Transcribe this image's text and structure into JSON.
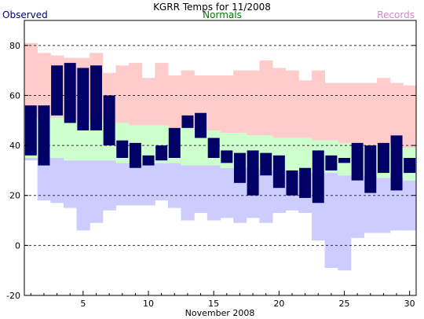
{
  "chart_data": {
    "type": "bar",
    "title": "KGRR Temps for 11/2008",
    "xlabel": "November 2008",
    "ylabel": "",
    "ylim": [
      -20,
      90
    ],
    "xlim": [
      0.5,
      30.5
    ],
    "yticks": [
      -20,
      0,
      20,
      40,
      60,
      80
    ],
    "xticks": [
      5,
      10,
      15,
      20,
      25,
      30
    ],
    "grid": "horizontal dashed",
    "legend": [
      "Observed",
      "Normals",
      "Records"
    ],
    "colors": {
      "observed": "#000066",
      "normals": "#ccffcc",
      "record_high": "#ffcccc",
      "record_low": "#ccccff",
      "legend_observed": "#000066",
      "legend_normals": "#007700",
      "legend_records": "#cc88cc"
    },
    "days": [
      1,
      2,
      3,
      4,
      5,
      6,
      7,
      8,
      9,
      10,
      11,
      12,
      13,
      14,
      15,
      16,
      17,
      18,
      19,
      20,
      21,
      22,
      23,
      24,
      25,
      26,
      27,
      28,
      29,
      30
    ],
    "observed_high": [
      56,
      56,
      72,
      73,
      71,
      72,
      60,
      42,
      41,
      36,
      40,
      47,
      52,
      53,
      43,
      38,
      37,
      38,
      37,
      36,
      30,
      31,
      38,
      36,
      35,
      41,
      40,
      41,
      44,
      35
    ],
    "observed_low": [
      36,
      32,
      52,
      49,
      46,
      46,
      40,
      35,
      31,
      32,
      34,
      35,
      47,
      43,
      35,
      33,
      25,
      20,
      28,
      23,
      20,
      19,
      17,
      30,
      33,
      26,
      21,
      29,
      22,
      29
    ],
    "normal_high": [
      51,
      51,
      51,
      50,
      50,
      50,
      49,
      49,
      48,
      48,
      48,
      47,
      47,
      46,
      46,
      45,
      45,
      44,
      44,
      43,
      43,
      43,
      42,
      42,
      41,
      41,
      40,
      40,
      39,
      39
    ],
    "normal_low": [
      35,
      35,
      35,
      34,
      34,
      34,
      34,
      33,
      33,
      33,
      33,
      33,
      32,
      32,
      32,
      31,
      31,
      31,
      30,
      30,
      30,
      29,
      29,
      29,
      28,
      28,
      28,
      27,
      27,
      26
    ],
    "record_high": [
      81,
      77,
      76,
      75,
      75,
      77,
      69,
      72,
      73,
      67,
      73,
      68,
      70,
      68,
      68,
      68,
      70,
      70,
      74,
      71,
      70,
      66,
      70,
      65,
      65,
      65,
      65,
      67,
      65,
      64
    ],
    "record_low": [
      34,
      18,
      17,
      15,
      6,
      9,
      14,
      16,
      16,
      16,
      18,
      15,
      10,
      13,
      10,
      11,
      9,
      11,
      9,
      13,
      14,
      13,
      2,
      -9,
      -10,
      3,
      5,
      5,
      6,
      6
    ]
  }
}
